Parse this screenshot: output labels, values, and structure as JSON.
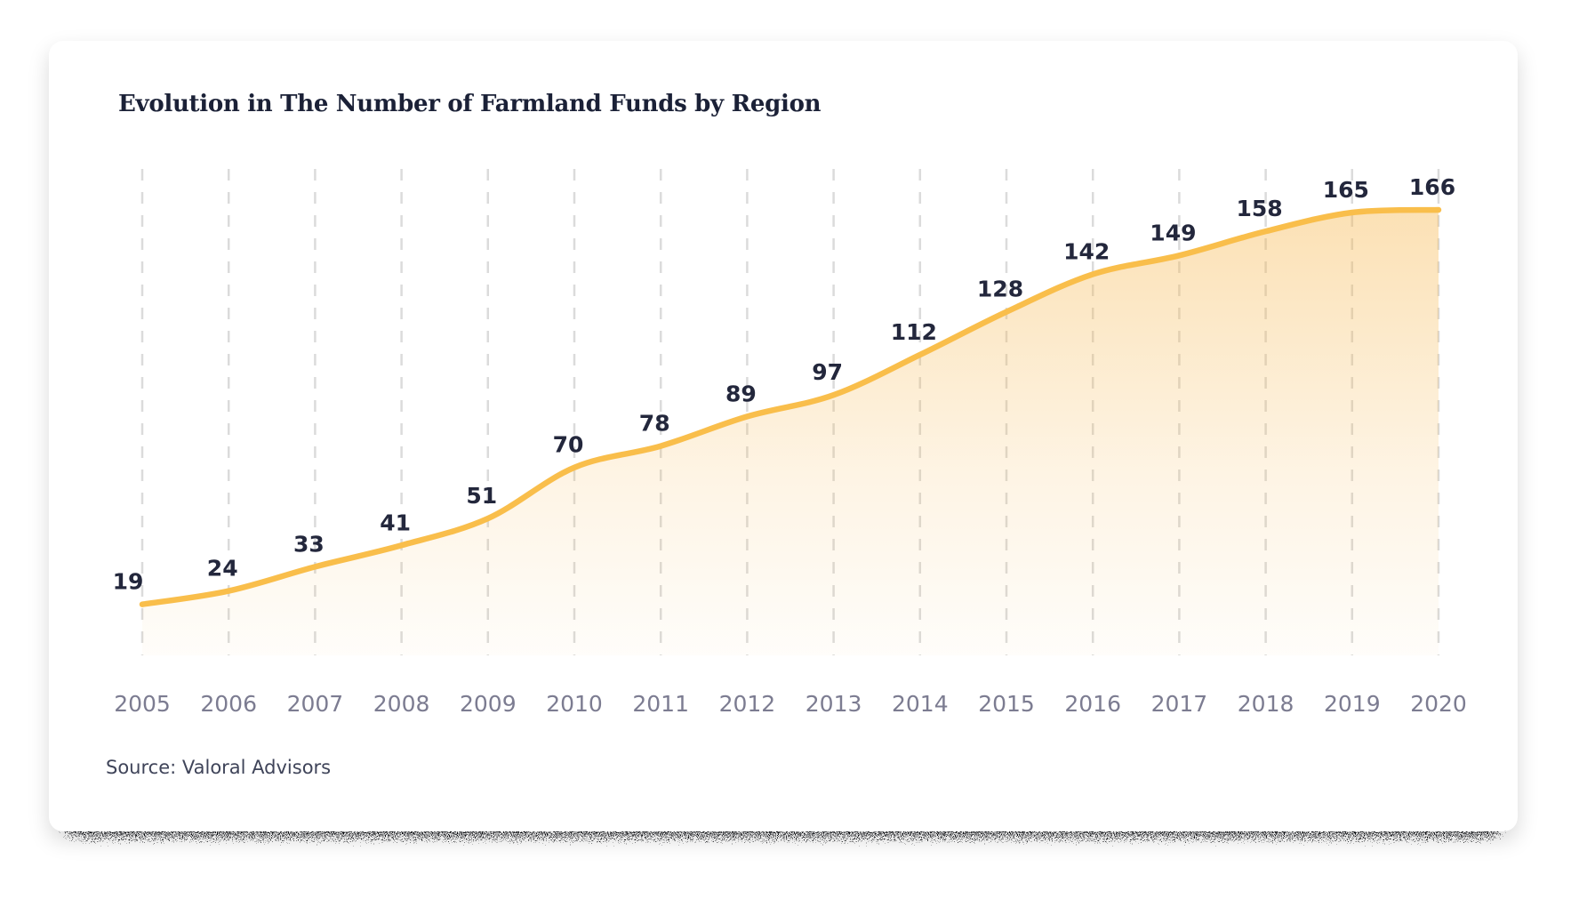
{
  "chart_data": {
    "type": "area",
    "title": "Evolution in The Number of Farmland Funds by Region",
    "source": "Source: Valoral Advisors",
    "x": [
      "2005",
      "2006",
      "2007",
      "2008",
      "2009",
      "2010",
      "2011",
      "2012",
      "2013",
      "2014",
      "2015",
      "2016",
      "2017",
      "2018",
      "2019",
      "2020"
    ],
    "series": [
      {
        "name": "Number of Farmland Funds",
        "values": [
          19,
          24,
          33,
          41,
          51,
          70,
          78,
          89,
          97,
          112,
          128,
          142,
          149,
          158,
          165,
          166
        ]
      }
    ],
    "ylim": [
      0,
      166
    ],
    "grid": "vertical-dashed",
    "legend": "none",
    "style": {
      "line_color": "#F9BE4B",
      "fill_color": "#F6B74E",
      "grid_color": "#DBDBDB",
      "value_label_color": "#23273C",
      "axis_label_color": "#7C7C91",
      "title_color": "#1B2137",
      "source_color": "#3F4459",
      "card_background": "#FFFFFF"
    }
  }
}
